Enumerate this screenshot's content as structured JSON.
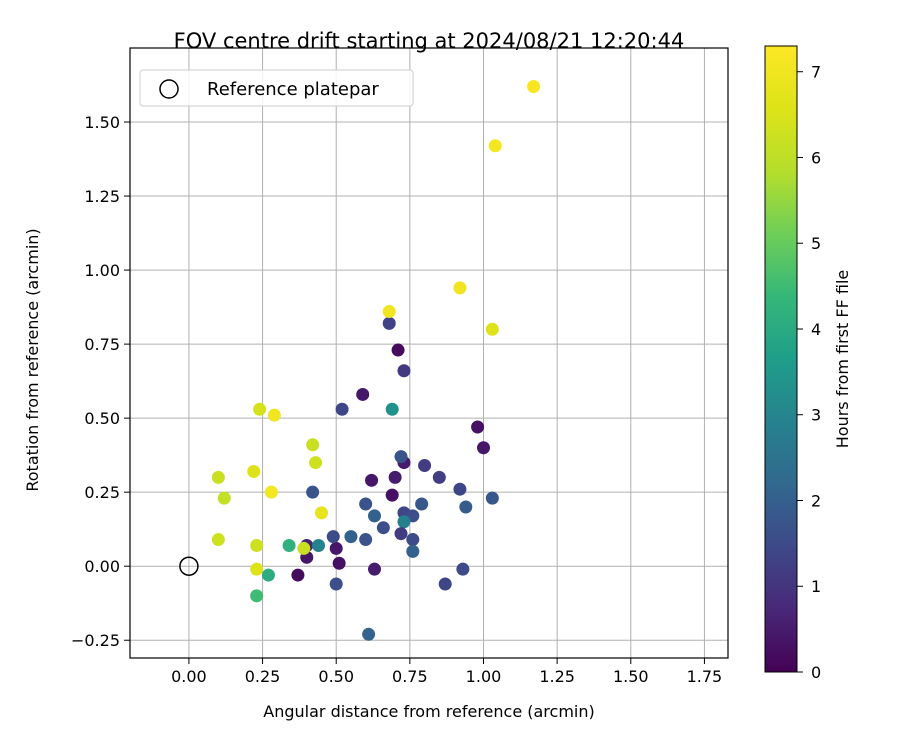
{
  "chart_data": {
    "type": "scatter",
    "title": "FOV centre drift starting at 2024/08/21 12:20:44",
    "xlabel": "Angular distance from reference (arcmin)",
    "ylabel": "Rotation from reference (arcmin)",
    "xlim": [
      -0.2,
      1.83
    ],
    "ylim": [
      -0.31,
      1.75
    ],
    "xticks": [
      0.0,
      0.25,
      0.5,
      0.75,
      1.0,
      1.25,
      1.5,
      1.75
    ],
    "xtick_labels": [
      "0.00",
      "0.25",
      "0.50",
      "0.75",
      "1.00",
      "1.25",
      "1.50",
      "1.75"
    ],
    "yticks": [
      -0.25,
      0.0,
      0.25,
      0.5,
      0.75,
      1.0,
      1.25,
      1.5
    ],
    "ytick_labels": [
      "−0.25",
      "0.00",
      "0.25",
      "0.50",
      "0.75",
      "1.00",
      "1.25",
      "1.50"
    ],
    "grid": true,
    "legend": {
      "placement": "top-left",
      "entries": [
        "Reference platepar"
      ]
    },
    "reference_point": {
      "x": 0.0,
      "y": 0.0
    },
    "colorbar": {
      "label": "Hours from first FF file",
      "min": 0,
      "max": 7.3,
      "ticks": [
        0,
        1,
        2,
        3,
        4,
        5,
        6,
        7
      ],
      "tick_labels": [
        "0",
        "1",
        "2",
        "3",
        "4",
        "5",
        "6",
        "7"
      ],
      "colormap": "viridis"
    },
    "points": [
      {
        "x": 0.37,
        "y": -0.03,
        "c": 0.2
      },
      {
        "x": 0.4,
        "y": 0.03,
        "c": 0.4
      },
      {
        "x": 0.4,
        "y": 0.07,
        "c": 0.6
      },
      {
        "x": 0.5,
        "y": 0.06,
        "c": 0.4
      },
      {
        "x": 0.51,
        "y": 0.01,
        "c": 0.3
      },
      {
        "x": 0.63,
        "y": -0.01,
        "c": 0.5
      },
      {
        "x": 0.62,
        "y": 0.29,
        "c": 0.4
      },
      {
        "x": 0.69,
        "y": 0.24,
        "c": 0.3
      },
      {
        "x": 0.7,
        "y": 0.3,
        "c": 0.5
      },
      {
        "x": 0.73,
        "y": 0.35,
        "c": 0.5
      },
      {
        "x": 0.71,
        "y": 0.73,
        "c": 0.2
      },
      {
        "x": 0.59,
        "y": 0.58,
        "c": 0.4
      },
      {
        "x": 0.98,
        "y": 0.47,
        "c": 0.3
      },
      {
        "x": 1.0,
        "y": 0.4,
        "c": 0.4
      },
      {
        "x": 0.68,
        "y": 0.82,
        "c": 1.3
      },
      {
        "x": 0.73,
        "y": 0.66,
        "c": 1.1
      },
      {
        "x": 0.52,
        "y": 0.53,
        "c": 1.4
      },
      {
        "x": 0.69,
        "y": 0.53,
        "c": 3.3
      },
      {
        "x": 0.42,
        "y": 0.25,
        "c": 1.7
      },
      {
        "x": 0.72,
        "y": 0.37,
        "c": 1.7
      },
      {
        "x": 0.8,
        "y": 0.34,
        "c": 1.2
      },
      {
        "x": 0.85,
        "y": 0.3,
        "c": 1.2
      },
      {
        "x": 0.92,
        "y": 0.26,
        "c": 1.4
      },
      {
        "x": 1.03,
        "y": 0.23,
        "c": 1.8
      },
      {
        "x": 0.94,
        "y": 0.2,
        "c": 1.9
      },
      {
        "x": 0.6,
        "y": 0.21,
        "c": 1.7
      },
      {
        "x": 0.63,
        "y": 0.17,
        "c": 2.0
      },
      {
        "x": 0.66,
        "y": 0.13,
        "c": 1.6
      },
      {
        "x": 0.73,
        "y": 0.18,
        "c": 1.4
      },
      {
        "x": 0.76,
        "y": 0.17,
        "c": 1.6
      },
      {
        "x": 0.79,
        "y": 0.21,
        "c": 1.8
      },
      {
        "x": 0.73,
        "y": 0.15,
        "c": 2.9
      },
      {
        "x": 0.72,
        "y": 0.11,
        "c": 1.2
      },
      {
        "x": 0.76,
        "y": 0.09,
        "c": 1.5
      },
      {
        "x": 0.76,
        "y": 0.05,
        "c": 2.0
      },
      {
        "x": 0.49,
        "y": 0.1,
        "c": 1.5
      },
      {
        "x": 0.55,
        "y": 0.1,
        "c": 2.0
      },
      {
        "x": 0.6,
        "y": 0.09,
        "c": 1.7
      },
      {
        "x": 0.44,
        "y": 0.07,
        "c": 2.9
      },
      {
        "x": 0.5,
        "y": -0.06,
        "c": 1.6
      },
      {
        "x": 0.87,
        "y": -0.06,
        "c": 1.4
      },
      {
        "x": 0.93,
        "y": -0.01,
        "c": 1.5
      },
      {
        "x": 0.61,
        "y": -0.23,
        "c": 2.1
      },
      {
        "x": 0.34,
        "y": 0.07,
        "c": 4.2
      },
      {
        "x": 0.27,
        "y": -0.03,
        "c": 4.1
      },
      {
        "x": 0.23,
        "y": -0.1,
        "c": 4.5
      },
      {
        "x": 0.39,
        "y": 0.06,
        "c": 6.2
      },
      {
        "x": 0.23,
        "y": 0.07,
        "c": 6.3
      },
      {
        "x": 0.23,
        "y": -0.01,
        "c": 6.6
      },
      {
        "x": 0.1,
        "y": 0.09,
        "c": 6.3
      },
      {
        "x": 0.12,
        "y": 0.23,
        "c": 6.1
      },
      {
        "x": 0.1,
        "y": 0.3,
        "c": 6.2
      },
      {
        "x": 0.22,
        "y": 0.32,
        "c": 6.6
      },
      {
        "x": 0.42,
        "y": 0.41,
        "c": 6.2
      },
      {
        "x": 0.43,
        "y": 0.35,
        "c": 6.3
      },
      {
        "x": 0.45,
        "y": 0.18,
        "c": 6.8
      },
      {
        "x": 0.28,
        "y": 0.25,
        "c": 7.1
      },
      {
        "x": 0.24,
        "y": 0.53,
        "c": 6.4
      },
      {
        "x": 0.29,
        "y": 0.51,
        "c": 7.0
      },
      {
        "x": 0.68,
        "y": 0.86,
        "c": 7.0
      },
      {
        "x": 0.92,
        "y": 0.94,
        "c": 7.0
      },
      {
        "x": 1.03,
        "y": 0.8,
        "c": 6.6
      },
      {
        "x": 1.04,
        "y": 1.42,
        "c": 7.1
      },
      {
        "x": 1.17,
        "y": 1.62,
        "c": 7.2
      }
    ]
  }
}
